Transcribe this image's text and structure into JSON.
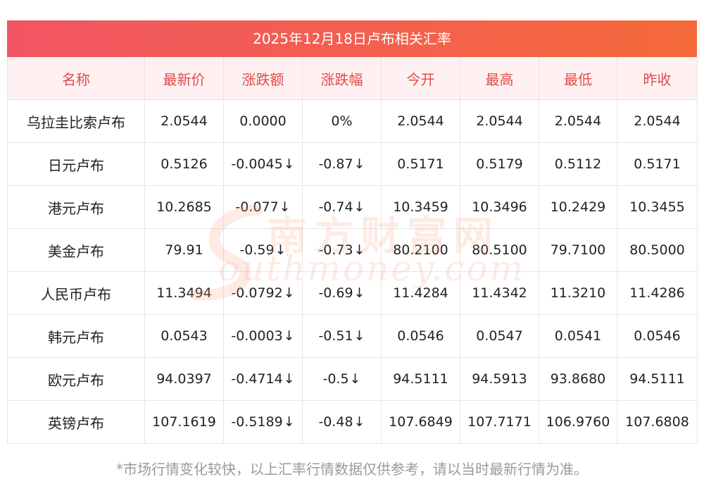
{
  "title": "2025年12月18日卢布相关汇率",
  "columns": [
    "名称",
    "最新价",
    "涨跌额",
    "涨跌幅",
    "今开",
    "最高",
    "最低",
    "昨收"
  ],
  "rows": [
    {
      "name": "乌拉圭比索卢布",
      "latest": "2.0544",
      "change": "0.0000",
      "pct": "0%",
      "open": "2.0544",
      "high": "2.0544",
      "low": "2.0544",
      "prev": "2.0544",
      "direction": "flat"
    },
    {
      "name": "日元卢布",
      "latest": "0.5126",
      "change": "-0.0045",
      "pct": "-0.87",
      "open": "0.5171",
      "high": "0.5179",
      "low": "0.5112",
      "prev": "0.5171",
      "direction": "down"
    },
    {
      "name": "港元卢布",
      "latest": "10.2685",
      "change": "-0.077",
      "pct": "-0.74",
      "open": "10.3459",
      "high": "10.3496",
      "low": "10.2429",
      "prev": "10.3455",
      "direction": "down"
    },
    {
      "name": "美金卢布",
      "latest": "79.91",
      "change": "-0.59",
      "pct": "-0.73",
      "open": "80.2100",
      "high": "80.5100",
      "low": "79.7100",
      "prev": "80.5000",
      "direction": "down"
    },
    {
      "name": "人民币卢布",
      "latest": "11.3494",
      "change": "-0.0792",
      "pct": "-0.69",
      "open": "11.4284",
      "high": "11.4342",
      "low": "11.3210",
      "prev": "11.4286",
      "direction": "down"
    },
    {
      "name": "韩元卢布",
      "latest": "0.0543",
      "change": "-0.0003",
      "pct": "-0.51",
      "open": "0.0546",
      "high": "0.0547",
      "low": "0.0541",
      "prev": "0.0546",
      "direction": "down"
    },
    {
      "name": "欧元卢布",
      "latest": "94.0397",
      "change": "-0.4714",
      "pct": "-0.5",
      "open": "94.5111",
      "high": "94.5913",
      "low": "93.8680",
      "prev": "94.5111",
      "direction": "down"
    },
    {
      "name": "英镑卢布",
      "latest": "107.1619",
      "change": "-0.5189",
      "pct": "-0.48",
      "open": "107.6849",
      "high": "107.7171",
      "low": "106.9760",
      "prev": "107.6808",
      "direction": "down"
    }
  ],
  "down_arrow": "↓",
  "watermark": {
    "cn": "南方财富网",
    "en": "outhmoney.com"
  },
  "footnote": "*市场行情变化较快，以上汇率行情数据仅供参考，请以当时最新行情为准。",
  "colors": {
    "header_text": "#e04a4a",
    "header_bg": "#fff1f1",
    "down": "#138a17",
    "title_bar_start": "#f25562",
    "title_bar_end": "#f56a3a"
  }
}
